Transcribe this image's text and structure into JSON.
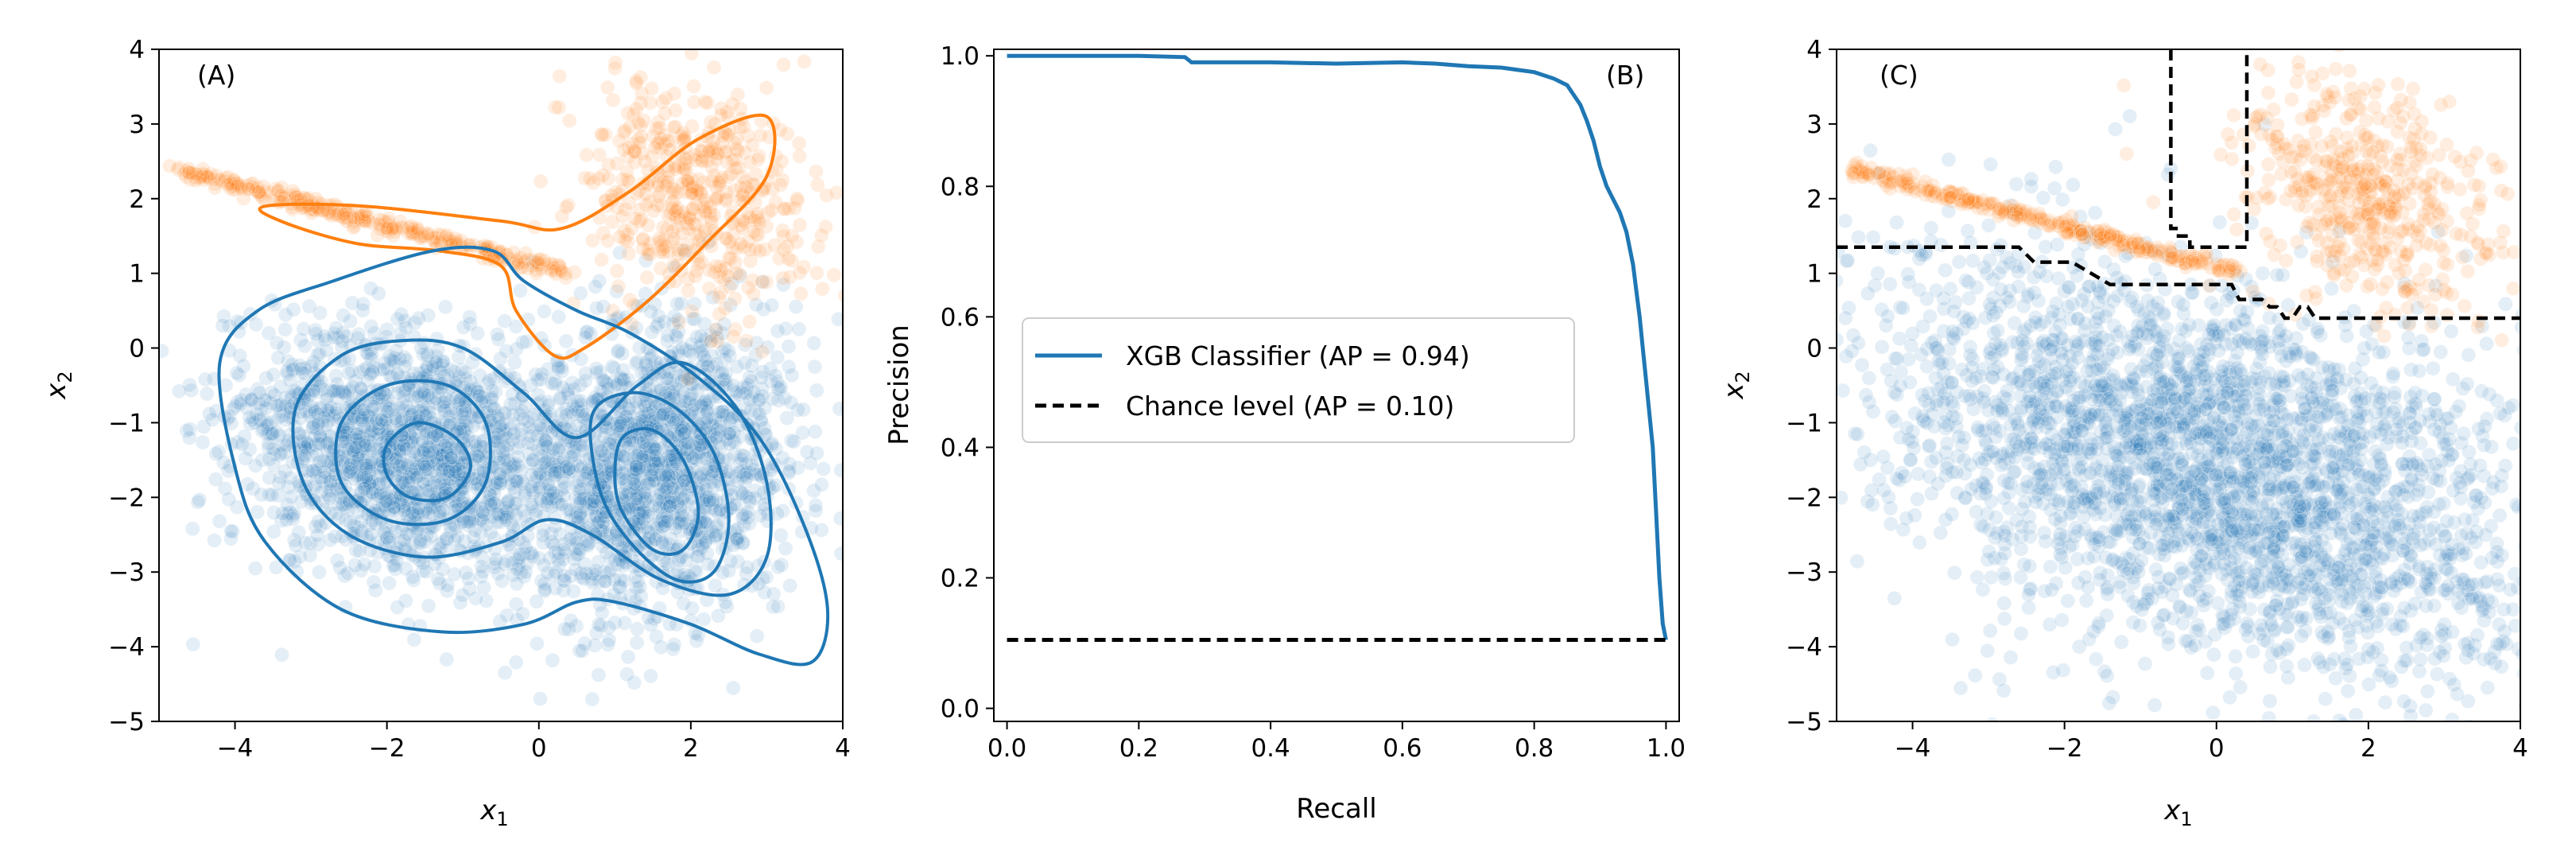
{
  "colors": {
    "class0": "#1f77b4",
    "class1": "#ff7f0e",
    "chance": "#000000",
    "frame": "#000000",
    "background": "#ffffff"
  },
  "chart_data": [
    {
      "panel_label": "(A)",
      "type": "scatter",
      "xlabel_main": "x",
      "xlabel_sub": "1",
      "ylabel_main": "x",
      "ylabel_sub": "2",
      "xlim": [
        -5,
        4
      ],
      "ylim": [
        -5,
        4
      ],
      "xticks": [
        -4,
        -2,
        0,
        2,
        4
      ],
      "yticks": [
        -5,
        -4,
        -3,
        -2,
        -1,
        0,
        1,
        2,
        3,
        4
      ],
      "xtick_labels": [
        "−4",
        "−2",
        "0",
        "2",
        "4"
      ],
      "ytick_labels": [
        "−5",
        "−4",
        "−3",
        "−2",
        "−1",
        "0",
        "1",
        "2",
        "3",
        "4"
      ],
      "grid": false,
      "series": [
        {
          "class": 0,
          "clusters": [
            {
              "center": [
                -1.8,
                -1.4
              ],
              "spread": [
                1.1,
                0.8
              ],
              "tilt": -0.35
            },
            {
              "center": [
                1.5,
                -1.6
              ],
              "spread": [
                0.9,
                1.0
              ],
              "tilt": -0.5
            }
          ]
        },
        {
          "class": 1,
          "band": {
            "from": [
              -4.8,
              2.4
            ],
            "to": [
              0.4,
              1.0
            ]
          },
          "cluster": {
            "center": [
              2.1,
              2.0
            ],
            "spread": [
              0.7,
              0.8
            ],
            "tilt": 0.8
          }
        }
      ],
      "contours": [
        {
          "class": 1,
          "level": "outer",
          "points": [
            [
              -3.6,
              1.9
            ],
            [
              -2.3,
              1.9
            ],
            [
              -0.5,
              1.7
            ],
            [
              0.3,
              1.6
            ],
            [
              1.2,
              2.1
            ],
            [
              2.1,
              2.8
            ],
            [
              3.0,
              3.1
            ],
            [
              3.0,
              2.3
            ],
            [
              2.2,
              1.4
            ],
            [
              1.4,
              0.6
            ],
            [
              0.6,
              0.0
            ],
            [
              0.2,
              -0.1
            ],
            [
              -0.3,
              0.5
            ],
            [
              -0.5,
              1.1
            ],
            [
              -1.3,
              1.3
            ],
            [
              -2.4,
              1.4
            ],
            [
              -3.4,
              1.7
            ]
          ]
        },
        {
          "class": 0,
          "level": "outer",
          "points": [
            [
              -4.2,
              -0.2
            ],
            [
              -3.7,
              0.5
            ],
            [
              -2.7,
              0.9
            ],
            [
              -1.4,
              1.3
            ],
            [
              -0.6,
              1.3
            ],
            [
              -0.2,
              0.9
            ],
            [
              0.5,
              0.5
            ],
            [
              1.2,
              0.2
            ],
            [
              2.1,
              -0.4
            ],
            [
              2.9,
              -1.2
            ],
            [
              3.5,
              -2.4
            ],
            [
              3.8,
              -3.5
            ],
            [
              3.6,
              -4.2
            ],
            [
              2.9,
              -4.1
            ],
            [
              2.0,
              -3.7
            ],
            [
              1.0,
              -3.4
            ],
            [
              0.5,
              -3.4
            ],
            [
              -0.2,
              -3.7
            ],
            [
              -1.3,
              -3.8
            ],
            [
              -2.6,
              -3.5
            ],
            [
              -3.6,
              -2.6
            ],
            [
              -4.0,
              -1.6
            ]
          ]
        },
        {
          "class": 0,
          "level": "mid",
          "points": [
            [
              -3.2,
              -0.8
            ],
            [
              -2.6,
              -0.1
            ],
            [
              -1.8,
              0.1
            ],
            [
              -1.0,
              0.0
            ],
            [
              -0.2,
              -0.6
            ],
            [
              0.5,
              -1.2
            ],
            [
              1.3,
              -0.5
            ],
            [
              1.9,
              -0.2
            ],
            [
              2.6,
              -0.8
            ],
            [
              3.0,
              -1.8
            ],
            [
              3.0,
              -2.8
            ],
            [
              2.5,
              -3.3
            ],
            [
              1.6,
              -3.1
            ],
            [
              0.7,
              -2.5
            ],
            [
              0.1,
              -2.3
            ],
            [
              -0.5,
              -2.6
            ],
            [
              -1.5,
              -2.8
            ],
            [
              -2.5,
              -2.5
            ],
            [
              -3.1,
              -1.8
            ]
          ]
        },
        {
          "class": 0,
          "level": "inner-left",
          "points": [
            [
              -2.6,
              -1.0
            ],
            [
              -2.0,
              -0.5
            ],
            [
              -1.2,
              -0.5
            ],
            [
              -0.7,
              -1.0
            ],
            [
              -0.7,
              -1.8
            ],
            [
              -1.2,
              -2.3
            ],
            [
              -2.0,
              -2.3
            ],
            [
              -2.6,
              -1.8
            ]
          ]
        },
        {
          "class": 0,
          "level": "core-left",
          "points": [
            [
              -2.0,
              -1.3
            ],
            [
              -1.6,
              -1.0
            ],
            [
              -1.1,
              -1.2
            ],
            [
              -0.9,
              -1.6
            ],
            [
              -1.2,
              -2.0
            ],
            [
              -1.7,
              -2.0
            ],
            [
              -2.0,
              -1.7
            ]
          ]
        },
        {
          "class": 0,
          "level": "inner-right",
          "points": [
            [
              0.7,
              -0.9
            ],
            [
              1.2,
              -0.6
            ],
            [
              1.8,
              -0.8
            ],
            [
              2.3,
              -1.4
            ],
            [
              2.5,
              -2.3
            ],
            [
              2.3,
              -3.0
            ],
            [
              1.8,
              -3.1
            ],
            [
              1.2,
              -2.6
            ],
            [
              0.8,
              -1.9
            ]
          ]
        },
        {
          "class": 0,
          "level": "core-right",
          "points": [
            [
              1.1,
              -1.2
            ],
            [
              1.5,
              -1.1
            ],
            [
              1.9,
              -1.5
            ],
            [
              2.1,
              -2.2
            ],
            [
              1.9,
              -2.7
            ],
            [
              1.5,
              -2.7
            ],
            [
              1.1,
              -2.2
            ],
            [
              1.0,
              -1.7
            ]
          ]
        }
      ]
    },
    {
      "panel_label": "(B)",
      "type": "line",
      "xlabel": "Recall",
      "ylabel": "Precision",
      "xlim": [
        -0.02,
        1.02
      ],
      "ylim": [
        -0.02,
        1.01
      ],
      "xticks": [
        0.0,
        0.2,
        0.4,
        0.6,
        0.8,
        1.0
      ],
      "yticks": [
        0.0,
        0.2,
        0.4,
        0.6,
        0.8,
        1.0
      ],
      "xtick_labels": [
        "0.0",
        "0.2",
        "0.4",
        "0.6",
        "0.8",
        "1.0"
      ],
      "ytick_labels": [
        "0.0",
        "0.2",
        "0.4",
        "0.6",
        "0.8",
        "1.0"
      ],
      "grid": false,
      "legend_position": "center-left",
      "series": [
        {
          "name": "XGB Classifier (AP = 0.94)",
          "style": "solid",
          "x": [
            0.0,
            0.1,
            0.2,
            0.27,
            0.28,
            0.4,
            0.5,
            0.6,
            0.65,
            0.7,
            0.75,
            0.8,
            0.83,
            0.85,
            0.86,
            0.87,
            0.88,
            0.89,
            0.9,
            0.91,
            0.92,
            0.93,
            0.94,
            0.95,
            0.955,
            0.96,
            0.965,
            0.97,
            0.975,
            0.98,
            0.985,
            0.99,
            0.995,
            1.0
          ],
          "y": [
            1.0,
            1.0,
            1.0,
            0.998,
            0.99,
            0.99,
            0.988,
            0.99,
            0.988,
            0.984,
            0.982,
            0.975,
            0.965,
            0.955,
            0.94,
            0.925,
            0.9,
            0.87,
            0.83,
            0.8,
            0.78,
            0.76,
            0.73,
            0.68,
            0.64,
            0.6,
            0.55,
            0.5,
            0.45,
            0.4,
            0.3,
            0.2,
            0.13,
            0.105
          ]
        },
        {
          "name": "Chance level (AP = 0.10)",
          "style": "dashed",
          "x": [
            0.0,
            1.0
          ],
          "y": [
            0.105,
            0.105
          ]
        }
      ]
    },
    {
      "panel_label": "(C)",
      "type": "scatter",
      "xlabel_main": "x",
      "xlabel_sub": "1",
      "ylabel_main": "x",
      "ylabel_sub": "2",
      "xlim": [
        -5,
        4
      ],
      "ylim": [
        -5,
        4
      ],
      "xticks": [
        -4,
        -2,
        0,
        2,
        4
      ],
      "yticks": [
        -5,
        -4,
        -3,
        -2,
        -1,
        0,
        1,
        2,
        3,
        4
      ],
      "xtick_labels": [
        "−4",
        "−2",
        "0",
        "2",
        "4"
      ],
      "ytick_labels": [
        "−5",
        "−4",
        "−3",
        "−2",
        "−1",
        "0",
        "1",
        "2",
        "3",
        "4"
      ],
      "grid": false,
      "series": [
        {
          "class": 0,
          "cluster": {
            "center": [
              0.0,
              -1.6
            ],
            "spread": [
              2.3,
              1.2
            ],
            "tilt": -0.35
          }
        },
        {
          "class": 1,
          "band": {
            "from": [
              -4.8,
              2.4
            ],
            "to": [
              0.3,
              1.0
            ]
          },
          "cluster": {
            "center": [
              2.0,
              2.0
            ],
            "spread": [
              0.7,
              0.9
            ],
            "tilt": 0.9
          }
        }
      ],
      "decision_boundary": [
        {
          "x": [
            -5.0,
            -2.6,
            -2.4,
            -1.9,
            -1.4,
            0.2,
            0.3,
            0.6,
            0.7,
            0.8,
            0.9,
            1.0,
            1.1,
            1.2,
            1.3,
            1.4,
            4.0
          ],
          "y": [
            1.35,
            1.35,
            1.15,
            1.15,
            0.85,
            0.85,
            0.65,
            0.65,
            0.55,
            0.55,
            0.4,
            0.4,
            0.55,
            0.55,
            0.4,
            0.4,
            0.4
          ]
        },
        {
          "x": [
            -0.6,
            -0.6,
            -0.5,
            -0.5,
            -0.35,
            -0.35,
            0.4,
            0.4
          ],
          "y": [
            4.0,
            1.6,
            1.6,
            1.5,
            1.5,
            1.35,
            1.35,
            4.0
          ]
        }
      ]
    }
  ]
}
